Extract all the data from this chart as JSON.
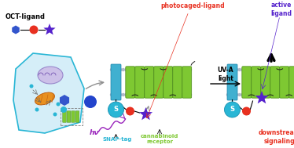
{
  "bg_color": "#ffffff",
  "snap_tag_color": "#29b6d5",
  "receptor_color": "#7ec832",
  "receptor_border": "#4a8a18",
  "red_circle_color": "#e83020",
  "blue_star_color": "#5522cc",
  "blue_hex_color": "#3355cc",
  "teal_block_color": "#40b0d0",
  "teal_block_border": "#1880a8",
  "membrane_dot_color": "#b0b8c8",
  "photocaged_color": "#e83020",
  "photocaged_label": "photocaged-ligand",
  "hv_color": "#9922bb",
  "hv_text": "hν",
  "snap_label_color": "#29b6d5",
  "snap_label": "SNAP-tag",
  "receptor_label": "cannabinoid\nreceptor",
  "receptor_label_color": "#7ec832",
  "downstream_label": "downstream\nsignaling",
  "downstream_color": "#e83020",
  "uva_label": "UV-A\nlight",
  "oct_label": "OCT-ligand",
  "active_label": "active\nligand",
  "active_color": "#5522cc",
  "cell_color": "#d5eef8",
  "cell_border": "#29b6d5",
  "arrow_gray": "#909090",
  "loop_color": "#1a1a1a",
  "black": "#000000"
}
